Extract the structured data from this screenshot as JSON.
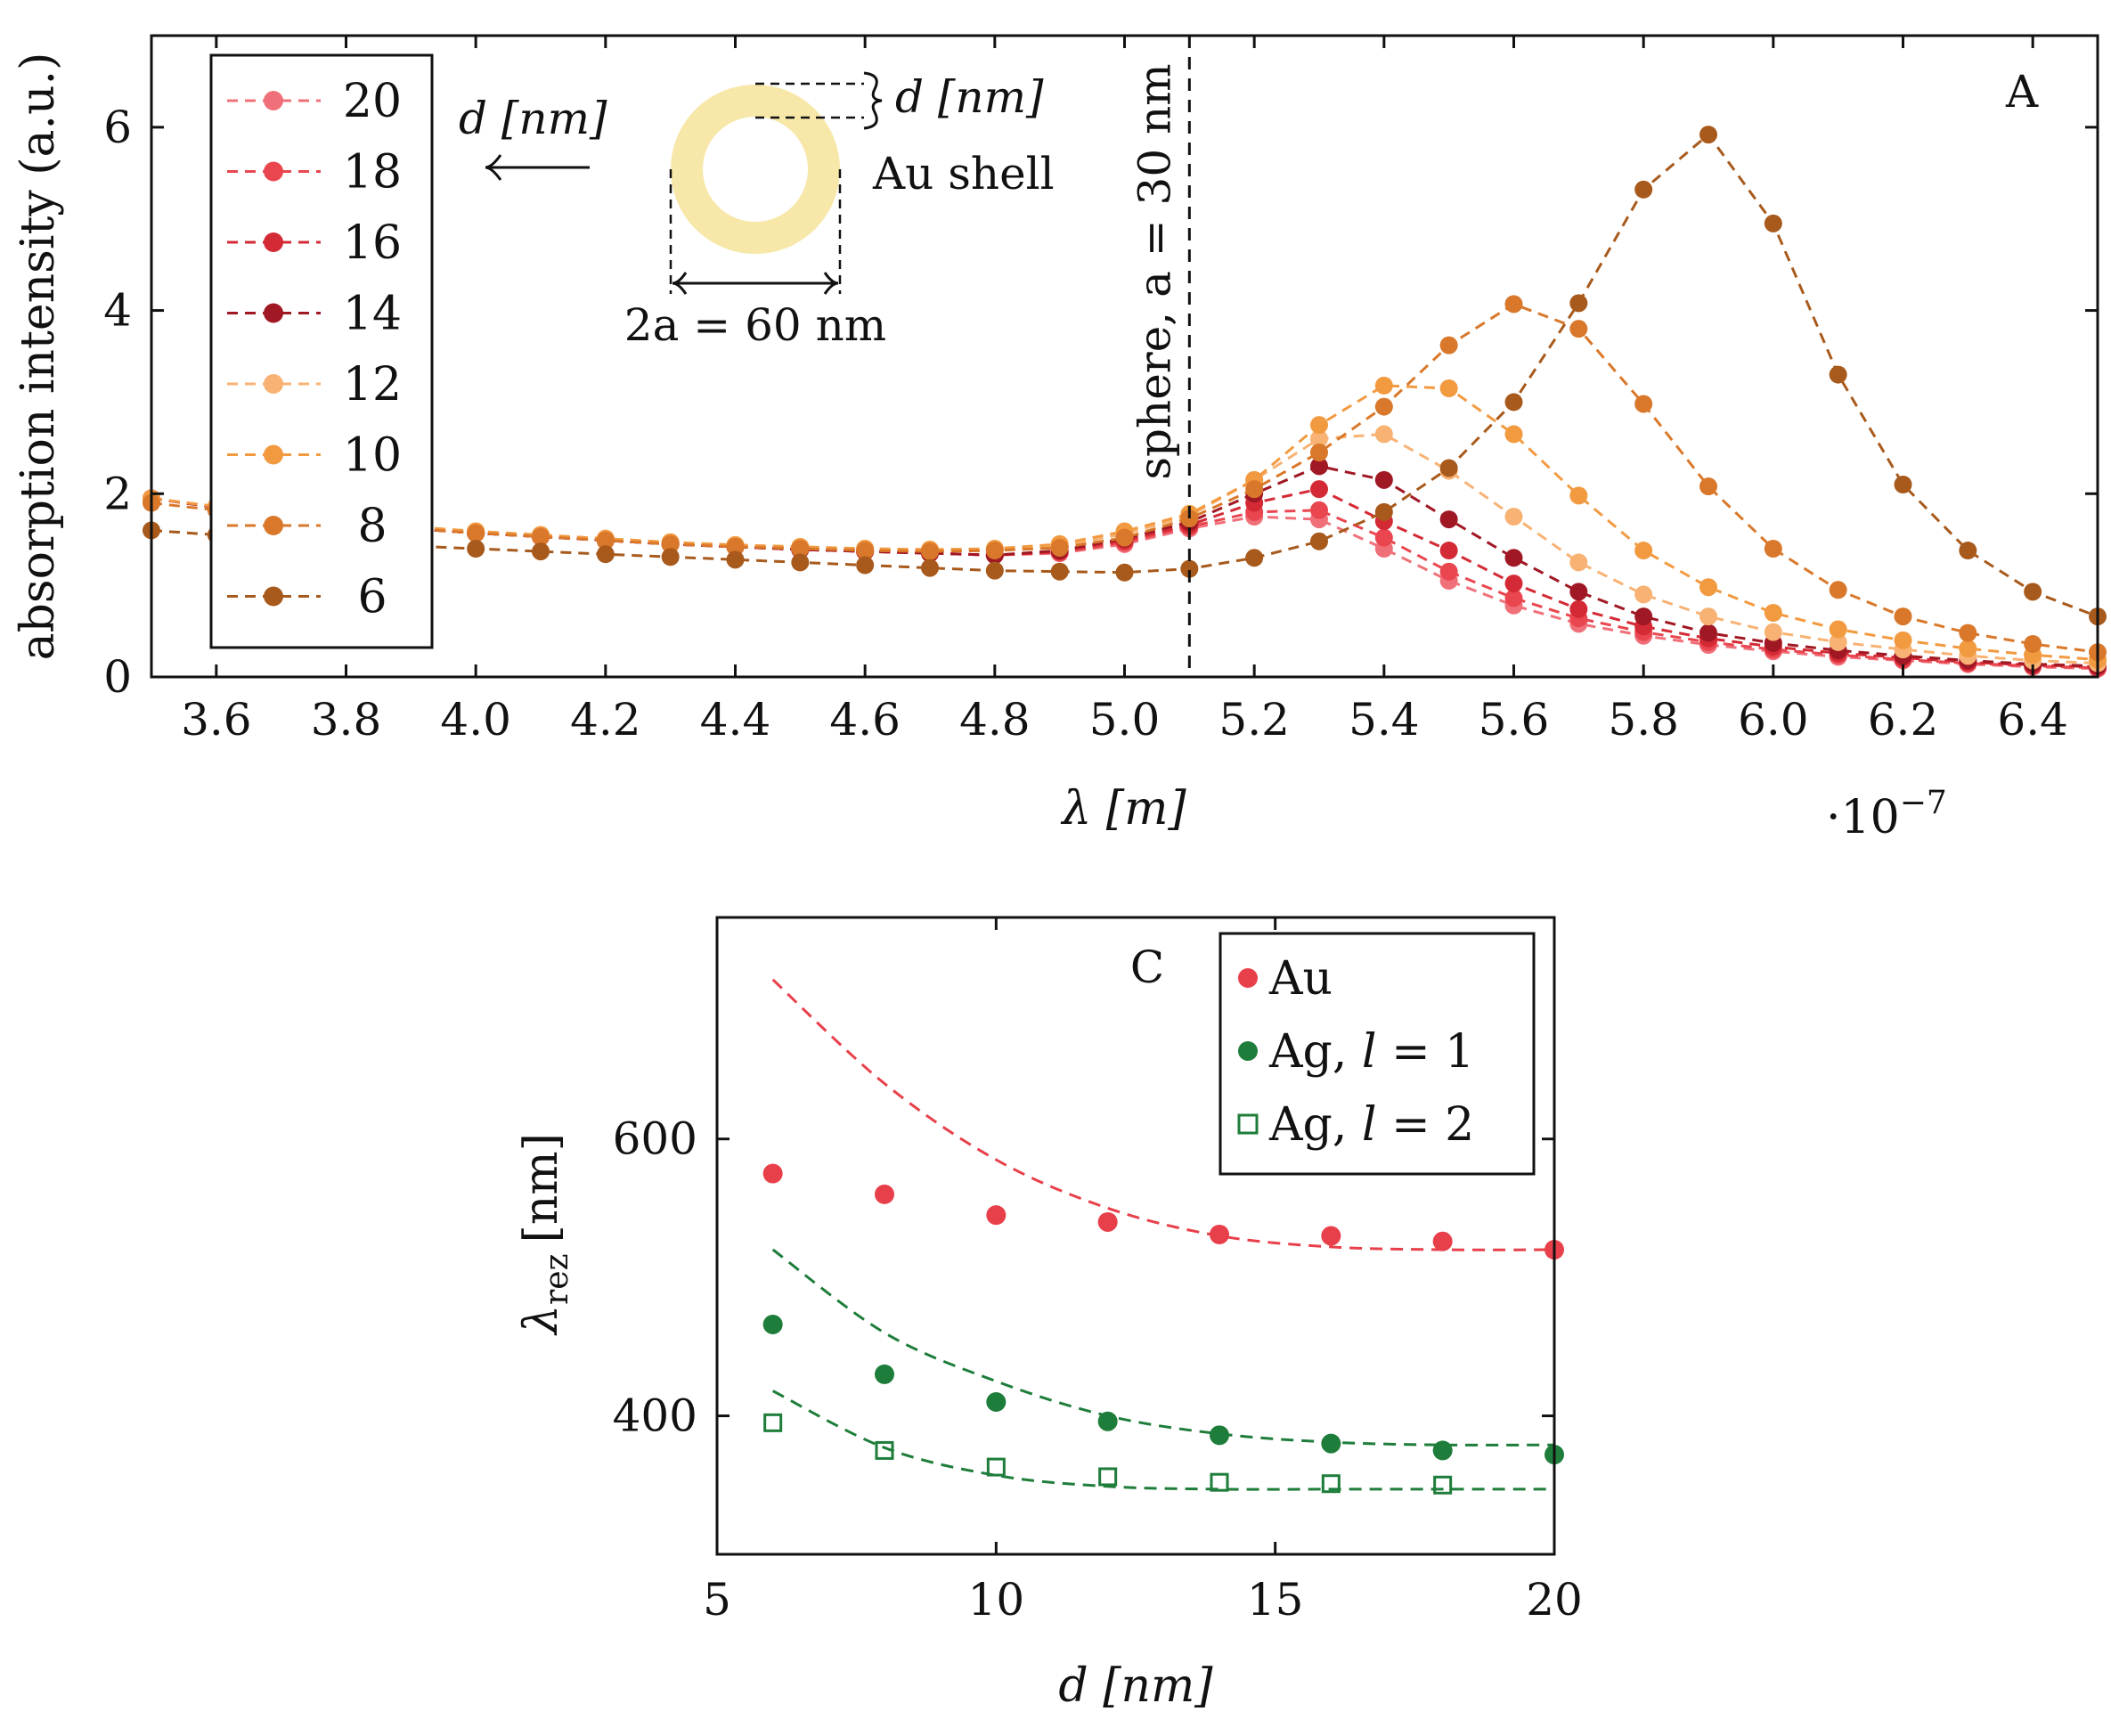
{
  "chart_data": [
    {
      "panel": "A",
      "type": "line",
      "title": "",
      "panel_label": "A",
      "xlabel": "λ [m]",
      "x_exponent_label": "·10",
      "x_exponent_power": "−7",
      "ylabel": "absorption intensity (a.u.)",
      "xlim": [
        3.5,
        6.5
      ],
      "ylim": [
        0,
        7
      ],
      "x_ticks": [
        3.6,
        3.8,
        4.0,
        4.2,
        4.4,
        4.6,
        4.8,
        5.0,
        5.2,
        5.4,
        5.6,
        5.8,
        6.0,
        6.2,
        6.4
      ],
      "x_tick_labels": [
        "3.6",
        "3.8",
        "4.0",
        "4.2",
        "4.4",
        "4.6",
        "4.8",
        "5.0",
        "5.2",
        "5.4",
        "5.6",
        "5.8",
        "6.0",
        "6.2",
        "6.4"
      ],
      "y_ticks": [
        0,
        2,
        4,
        6
      ],
      "y_tick_labels": [
        "0",
        "2",
        "4",
        "6"
      ],
      "vline_x": 5.1,
      "vline_label": "sphere, a = 30 nm",
      "legend_arrow_label": "d [nm]",
      "inset": {
        "thickness_label": "d [nm]",
        "shell_label": "Au shell",
        "diameter_label": "2a = 60 nm",
        "shell_color": "#f7e7a8"
      },
      "x": [
        3.5,
        3.6,
        3.7,
        3.8,
        3.9,
        4.0,
        4.1,
        4.2,
        4.3,
        4.4,
        4.5,
        4.6,
        4.7,
        4.8,
        4.9,
        5.0,
        5.1,
        5.2,
        5.3,
        5.4,
        5.5,
        5.6,
        5.7,
        5.8,
        5.9,
        6.0,
        6.1,
        6.2,
        6.3,
        6.4,
        6.5
      ],
      "series": [
        {
          "name": "20",
          "color": "#f0707a",
          "values": [
            1.95,
            1.85,
            1.75,
            1.68,
            1.62,
            1.57,
            1.53,
            1.49,
            1.45,
            1.42,
            1.39,
            1.37,
            1.35,
            1.33,
            1.35,
            1.45,
            1.62,
            1.75,
            1.72,
            1.4,
            1.05,
            0.78,
            0.58,
            0.45,
            0.35,
            0.28,
            0.22,
            0.18,
            0.14,
            0.11,
            0.09
          ]
        },
        {
          "name": "18",
          "color": "#ea4650",
          "values": [
            1.95,
            1.85,
            1.75,
            1.68,
            1.62,
            1.57,
            1.53,
            1.49,
            1.45,
            1.42,
            1.39,
            1.37,
            1.35,
            1.33,
            1.36,
            1.47,
            1.64,
            1.8,
            1.82,
            1.52,
            1.15,
            0.86,
            0.64,
            0.49,
            0.38,
            0.3,
            0.24,
            0.19,
            0.15,
            0.12,
            0.1
          ]
        },
        {
          "name": "16",
          "color": "#d42a35",
          "values": [
            1.95,
            1.85,
            1.75,
            1.68,
            1.62,
            1.57,
            1.53,
            1.49,
            1.45,
            1.42,
            1.39,
            1.37,
            1.35,
            1.33,
            1.37,
            1.49,
            1.66,
            1.9,
            2.05,
            1.7,
            1.38,
            1.02,
            0.74,
            0.55,
            0.42,
            0.33,
            0.26,
            0.21,
            0.16,
            0.13,
            0.11
          ]
        },
        {
          "name": "14",
          "color": "#a01824",
          "values": [
            1.95,
            1.85,
            1.75,
            1.68,
            1.62,
            1.57,
            1.53,
            1.49,
            1.45,
            1.42,
            1.39,
            1.37,
            1.35,
            1.33,
            1.38,
            1.51,
            1.69,
            2.0,
            2.3,
            2.15,
            1.72,
            1.3,
            0.93,
            0.66,
            0.48,
            0.37,
            0.29,
            0.23,
            0.18,
            0.14,
            0.12
          ]
        },
        {
          "name": "12",
          "color": "#f8b273",
          "values": [
            1.95,
            1.86,
            1.77,
            1.7,
            1.64,
            1.59,
            1.55,
            1.51,
            1.47,
            1.44,
            1.42,
            1.4,
            1.39,
            1.39,
            1.43,
            1.56,
            1.76,
            2.15,
            2.6,
            2.65,
            2.25,
            1.75,
            1.25,
            0.9,
            0.66,
            0.49,
            0.38,
            0.3,
            0.23,
            0.18,
            0.15
          ]
        },
        {
          "name": "10",
          "color": "#f29a40",
          "values": [
            1.95,
            1.86,
            1.77,
            1.7,
            1.64,
            1.59,
            1.55,
            1.51,
            1.47,
            1.44,
            1.42,
            1.4,
            1.39,
            1.4,
            1.45,
            1.59,
            1.78,
            2.15,
            2.75,
            3.18,
            3.15,
            2.65,
            1.98,
            1.38,
            0.98,
            0.7,
            0.52,
            0.4,
            0.31,
            0.24,
            0.19
          ]
        },
        {
          "name": "8",
          "color": "#d9782a",
          "values": [
            1.9,
            1.82,
            1.74,
            1.67,
            1.62,
            1.57,
            1.53,
            1.49,
            1.45,
            1.42,
            1.4,
            1.38,
            1.37,
            1.38,
            1.41,
            1.52,
            1.73,
            2.05,
            2.45,
            2.95,
            3.62,
            4.07,
            3.8,
            2.98,
            2.08,
            1.4,
            0.95,
            0.66,
            0.48,
            0.36,
            0.27
          ]
        },
        {
          "name": "6",
          "color": "#a85a1c",
          "values": [
            1.6,
            1.55,
            1.5,
            1.46,
            1.43,
            1.4,
            1.37,
            1.34,
            1.31,
            1.28,
            1.25,
            1.22,
            1.19,
            1.16,
            1.15,
            1.14,
            1.18,
            1.3,
            1.48,
            1.8,
            2.28,
            3.0,
            4.08,
            5.32,
            5.92,
            4.95,
            3.3,
            2.1,
            1.38,
            0.93,
            0.66
          ]
        }
      ]
    },
    {
      "panel": "C",
      "type": "scatter",
      "title": "",
      "panel_label": "C",
      "xlabel": "d [nm]",
      "ylabel_main": "λ",
      "ylabel_sub": "rez",
      "ylabel_unit": "[nm]",
      "xlim": [
        5,
        20
      ],
      "ylim": [
        300,
        760
      ],
      "x_ticks": [
        5,
        10,
        15,
        20
      ],
      "x_tick_labels": [
        "5",
        "10",
        "15",
        "20"
      ],
      "y_ticks": [
        400,
        600
      ],
      "y_tick_labels": [
        "400",
        "600"
      ],
      "series": [
        {
          "name": "Au",
          "legend_label": "Au",
          "marker": "filled-circle",
          "color": "#e8404a",
          "x": [
            6,
            8,
            10,
            12,
            14,
            16,
            18,
            20
          ],
          "values": [
            575,
            560,
            545,
            540,
            531,
            530,
            526,
            520
          ],
          "fit_x": [
            6,
            8,
            10,
            12,
            14,
            16,
            18,
            20
          ],
          "fit_values": [
            715,
            640,
            585,
            550,
            530,
            522,
            520,
            520
          ]
        },
        {
          "name": "Ag, l = 1",
          "legend_prefix": "Ag, ",
          "legend_var": "l",
          "legend_suffix": " = 1",
          "marker": "filled-circle",
          "color": "#1e7d3a",
          "x": [
            6,
            8,
            10,
            12,
            14,
            16,
            18,
            20
          ],
          "values": [
            466,
            430,
            410,
            396,
            386,
            380,
            375,
            372
          ],
          "fit_x": [
            6,
            8,
            10,
            12,
            14,
            16,
            18,
            20
          ],
          "fit_values": [
            520,
            460,
            425,
            400,
            387,
            381,
            379,
            379
          ]
        },
        {
          "name": "Ag, l = 2",
          "legend_prefix": "Ag, ",
          "legend_var": "l",
          "legend_suffix": " = 2",
          "marker": "open-square",
          "color": "#1e7d3a",
          "x": [
            6,
            8,
            10,
            12,
            14,
            16,
            18
          ],
          "values": [
            395,
            375,
            363,
            356,
            352,
            351,
            350
          ],
          "fit_x": [
            6,
            8,
            10,
            12,
            14,
            16,
            18,
            20
          ],
          "fit_values": [
            418,
            377,
            357,
            349,
            347,
            347,
            347,
            347
          ]
        }
      ]
    }
  ]
}
